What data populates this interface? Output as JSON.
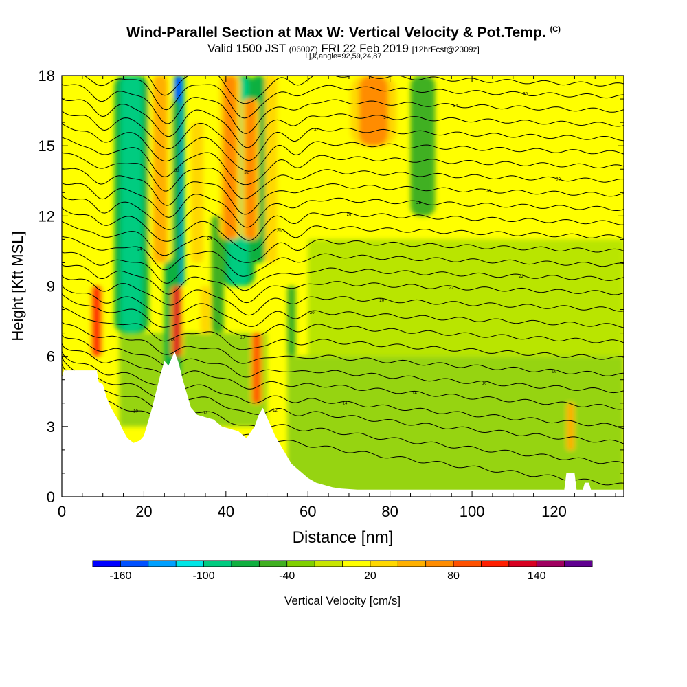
{
  "header": {
    "title": "Wind-Parallel Section at Max W: Vertical Velocity & Pot.Temp.",
    "copyright": "(C)",
    "valid_prefix": "Valid 1500 JST",
    "valid_utc": "(0600Z)",
    "valid_date": "FRI 22 Feb 2019",
    "forecast": "[12hrFcst@2309z]",
    "params": "i,j,k,angle=92,59,24,87"
  },
  "chart_data": {
    "type": "heatmap",
    "title": "Wind-Parallel Section at Max W: Vertical Velocity & Pot.Temp.",
    "xlabel": "Distance [nm]",
    "ylabel": "Height [Kft MSL]",
    "xlim": [
      0,
      137
    ],
    "ylim": [
      0,
      18
    ],
    "x_ticks": [
      "0",
      "20",
      "40",
      "60",
      "80",
      "100",
      "120"
    ],
    "y_ticks": [
      "0",
      "3",
      "6",
      "9",
      "12",
      "15",
      "18"
    ],
    "colorbar": {
      "label": "Vertical Velocity [cm/s]",
      "tick_labels": [
        "-160",
        "-100",
        "-40",
        "20",
        "80",
        "140"
      ],
      "colors": [
        "#0000ff",
        "#0050ff",
        "#00a0ff",
        "#00e6e6",
        "#00cc80",
        "#10b040",
        "#40b020",
        "#80d000",
        "#c8e600",
        "#ffff00",
        "#ffd800",
        "#ffb000",
        "#ff8c00",
        "#ff5000",
        "#ff1e00",
        "#d80020",
        "#a00060",
        "#600090"
      ]
    },
    "background_color": "#ffff00",
    "w_features": [
      {
        "x": 17,
        "ybot": 7,
        "ytop": 18,
        "w": -75,
        "halfwidth": 2.6
      },
      {
        "x": 28.5,
        "ybot": 9,
        "ytop": 18,
        "w": -130,
        "halfwidth": 0.9
      },
      {
        "x": 27,
        "ybot": 5,
        "ytop": 17,
        "w": -45,
        "halfwidth": 2.0
      },
      {
        "x": 43,
        "ybot": 9,
        "ytop": 18,
        "w": -75,
        "halfwidth": 2.5
      },
      {
        "x": 48,
        "ybot": 10,
        "ytop": 18,
        "w": -55,
        "halfwidth": 1.6
      },
      {
        "x": 38,
        "ybot": 7,
        "ytop": 12,
        "w": -35,
        "halfwidth": 1.5
      },
      {
        "x": 56,
        "ybot": 6,
        "ytop": 9,
        "w": -35,
        "halfwidth": 1.0
      },
      {
        "x": 88,
        "ybot": 12,
        "ytop": 18,
        "w": -25,
        "halfwidth": 3.0
      },
      {
        "x": 8.5,
        "ybot": 6,
        "ytop": 9,
        "w": 130,
        "halfwidth": 0.9
      },
      {
        "x": 28,
        "ybot": 6,
        "ytop": 9,
        "w": 145,
        "halfwidth": 0.9
      },
      {
        "x": 24,
        "ybot": 10,
        "ytop": 18,
        "w": 70,
        "halfwidth": 1.8
      },
      {
        "x": 33,
        "ybot": 10,
        "ytop": 16,
        "w": 50,
        "halfwidth": 1.5
      },
      {
        "x": 41,
        "ybot": 11,
        "ytop": 18,
        "w": 95,
        "halfwidth": 1.6
      },
      {
        "x": 46,
        "ybot": 11,
        "ytop": 17,
        "w": 80,
        "halfwidth": 1.3
      },
      {
        "x": 51,
        "ybot": 10,
        "ytop": 18,
        "w": 45,
        "halfwidth": 1.5
      },
      {
        "x": 76,
        "ybot": 15,
        "ytop": 18,
        "w": 85,
        "halfwidth": 3.5
      },
      {
        "x": 47.5,
        "ybot": 4,
        "ytop": 7,
        "w": 110,
        "halfwidth": 0.8
      },
      {
        "x": 35,
        "ybot": 7,
        "ytop": 9,
        "w": 45,
        "halfwidth": 1.2
      },
      {
        "x": 124,
        "ybot": 2,
        "ytop": 4,
        "w": 60,
        "halfwidth": 0.8
      }
    ],
    "sinking_zones": [
      {
        "x0": 55,
        "x1": 137,
        "ybot": 0,
        "ytop": 6,
        "w": -25
      },
      {
        "x0": 60,
        "x1": 137,
        "ybot": 6,
        "ytop": 11,
        "w": -20
      },
      {
        "x0": 14,
        "x1": 50,
        "ybot": 3,
        "ytop": 7,
        "w": -22
      }
    ],
    "terrain_height_kft": [
      [
        0,
        5.1
      ],
      [
        0.5,
        5.4
      ],
      [
        8.5,
        5.4
      ],
      [
        9,
        4.9
      ],
      [
        10,
        4.8
      ],
      [
        11,
        4.2
      ],
      [
        12,
        3.8
      ],
      [
        13,
        3.5
      ],
      [
        14,
        3.2
      ],
      [
        15,
        2.8
      ],
      [
        16,
        2.5
      ],
      [
        17.5,
        2.3
      ],
      [
        19,
        2.4
      ],
      [
        20,
        2.6
      ],
      [
        21,
        3.2
      ],
      [
        22,
        3.8
      ],
      [
        23,
        4.5
      ],
      [
        24,
        5.2
      ],
      [
        25,
        5.8
      ],
      [
        26,
        5.6
      ],
      [
        27.5,
        6.2
      ],
      [
        28.5,
        5.7
      ],
      [
        29.5,
        5.0
      ],
      [
        30.5,
        4.4
      ],
      [
        31.5,
        3.8
      ],
      [
        33,
        3.5
      ],
      [
        35,
        3.4
      ],
      [
        37,
        3.3
      ],
      [
        39,
        3.0
      ],
      [
        41,
        2.9
      ],
      [
        43,
        2.8
      ],
      [
        45,
        2.5
      ],
      [
        47,
        3.0
      ],
      [
        48,
        3.5
      ],
      [
        49,
        3.8
      ],
      [
        50,
        3.4
      ],
      [
        51,
        3.0
      ],
      [
        52,
        2.6
      ],
      [
        53,
        2.3
      ],
      [
        54,
        2.0
      ],
      [
        55,
        1.7
      ],
      [
        56,
        1.4
      ],
      [
        58,
        1.1
      ],
      [
        60,
        0.8
      ],
      [
        62,
        0.6
      ],
      [
        64,
        0.5
      ],
      [
        66,
        0.4
      ],
      [
        68,
        0.35
      ],
      [
        72,
        0.3
      ],
      [
        80,
        0.3
      ],
      [
        90,
        0.3
      ],
      [
        100,
        0.3
      ],
      [
        110,
        0.3
      ],
      [
        120,
        0.3
      ],
      [
        122.5,
        0.3
      ],
      [
        123,
        1.0
      ],
      [
        125,
        1.0
      ],
      [
        125.5,
        0.3
      ],
      [
        127,
        0.3
      ],
      [
        127.5,
        0.6
      ],
      [
        128.5,
        0.6
      ],
      [
        129,
        0.3
      ],
      [
        137,
        0.3
      ]
    ],
    "theta_contours_kft": [
      {
        "label": "10",
        "left": 5.2,
        "right": 0.5,
        "amp": 0.0
      },
      {
        "label": "12",
        "left": 5.6,
        "right": 1.4,
        "amp": 0.5
      },
      {
        "label": "12",
        "left": 5.9,
        "right": 2.3,
        "amp": 0.6
      },
      {
        "label": "14",
        "left": 6.2,
        "right": 3.0,
        "amp": 0.6
      },
      {
        "label": "14",
        "left": 6.6,
        "right": 3.8,
        "amp": 0.6
      },
      {
        "label": "16",
        "left": 7.0,
        "right": 4.5,
        "amp": 0.7
      },
      {
        "label": "16",
        "left": 7.5,
        "right": 5.2,
        "amp": 0.8
      },
      {
        "label": "18",
        "left": 8.1,
        "right": 5.9,
        "amp": 1.0
      },
      {
        "label": "18",
        "left": 8.6,
        "right": 6.6,
        "amp": 1.1
      },
      {
        "label": "20",
        "left": 9.0,
        "right": 7.3,
        "amp": 1.2
      },
      {
        "label": "20",
        "left": 9.5,
        "right": 8.0,
        "amp": 1.3
      },
      {
        "label": "22",
        "left": 10.0,
        "right": 8.7,
        "amp": 1.4
      },
      {
        "label": "22",
        "left": 10.5,
        "right": 9.3,
        "amp": 1.5
      },
      {
        "label": "24",
        "left": 11.1,
        "right": 9.9,
        "amp": 1.6
      },
      {
        "label": "24",
        "left": 11.7,
        "right": 10.5,
        "amp": 1.7
      },
      {
        "label": "26",
        "left": 12.3,
        "right": 11.1,
        "amp": 1.8
      },
      {
        "label": "26",
        "left": 12.9,
        "right": 11.7,
        "amp": 1.9
      },
      {
        "label": "28",
        "left": 13.5,
        "right": 12.3,
        "amp": 1.9
      },
      {
        "label": "28",
        "left": 14.1,
        "right": 12.9,
        "amp": 2.0
      },
      {
        "label": "30",
        "left": 14.7,
        "right": 13.5,
        "amp": 2.0
      },
      {
        "label": "30",
        "left": 15.3,
        "right": 14.1,
        "amp": 2.1
      },
      {
        "label": "32",
        "left": 15.9,
        "right": 14.7,
        "amp": 2.1
      },
      {
        "label": "32",
        "left": 16.5,
        "right": 15.3,
        "amp": 2.2
      },
      {
        "label": "34",
        "left": 17.1,
        "right": 15.9,
        "amp": 2.2
      },
      {
        "label": "34",
        "left": 17.7,
        "right": 16.5,
        "amp": 2.2
      },
      {
        "label": "36",
        "left": 18.3,
        "right": 17.1,
        "amp": 2.2
      },
      {
        "label": "36",
        "left": 18.9,
        "right": 17.6,
        "amp": 2.2
      }
    ]
  }
}
